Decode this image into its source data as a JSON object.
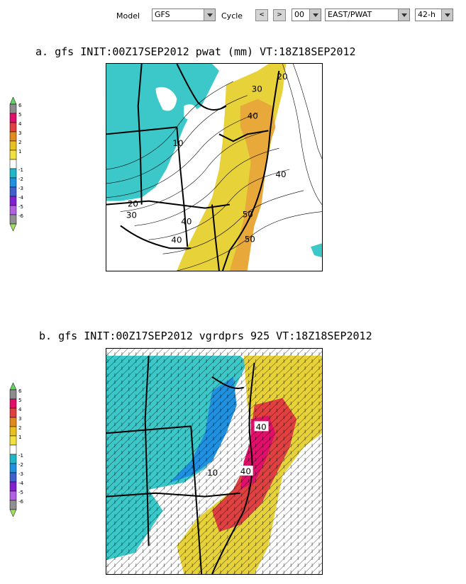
{
  "toolbar": {
    "model_label": "Model",
    "model_value": "GFS",
    "cycle_label": "Cycle",
    "prev_label": "<",
    "next_label": ">",
    "hour_value": "00",
    "region_value": "EAST/PWAT",
    "forecast_value": "42-h"
  },
  "panels": [
    {
      "title": "a.  gfs INIT:00Z17SEP2012 pwat (mm)  VT:18Z18SEP2012",
      "contour_labels": [
        "30",
        "20",
        "40",
        "10",
        "40",
        "20",
        "30",
        "40",
        "50",
        "40",
        "50"
      ]
    },
    {
      "title": "b. gfs INIT:00Z17SEP2012 vgrdprs 925 VT:18Z18SEP2012",
      "contour_labels": [
        "40",
        "40",
        "10"
      ]
    }
  ],
  "colorbar": {
    "labels": [
      "6",
      "5",
      "4",
      "3",
      "2",
      "1",
      "-1",
      "-2",
      "-3",
      "-4",
      "-5",
      "-6"
    ],
    "colors": [
      "#5fd45f",
      "#8c8c8c",
      "#e0106a",
      "#e04040",
      "#e08a20",
      "#e8c020",
      "#f0e040",
      "#ffffff",
      "#20b8c8",
      "#2090e0",
      "#4060d0",
      "#8020d0",
      "#b060e0",
      "#909090",
      "#a0e060"
    ]
  },
  "colors": {
    "cyan_fill": "#3cc8c8",
    "yellow_fill": "#e8d23a",
    "orange_fill": "#e8a83a",
    "magenta_fill": "#e0106a"
  }
}
